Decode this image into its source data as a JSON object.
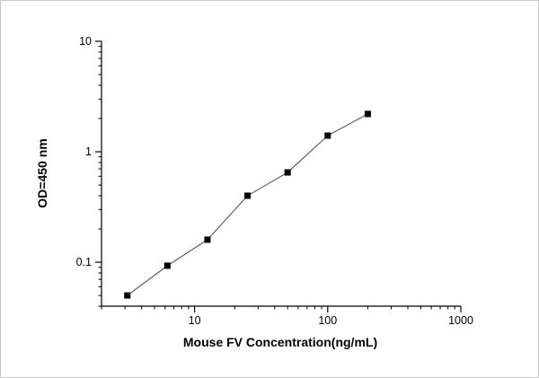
{
  "chart_data": {
    "type": "line",
    "title": "",
    "xlabel": "Mouse FV Concentration(ng/mL)",
    "ylabel": "OD=450 nm",
    "x": [
      3.125,
      6.25,
      12.5,
      25,
      50,
      100,
      200
    ],
    "y": [
      0.05,
      0.093,
      0.16,
      0.4,
      0.65,
      1.4,
      2.2
    ],
    "xscale": "log",
    "yscale": "log",
    "xlim": [
      2,
      1000
    ],
    "ylim": [
      0.04,
      10
    ],
    "x_major_ticks": [
      10,
      100,
      1000
    ],
    "y_major_ticks": [
      0.1,
      1,
      10
    ],
    "grid": false,
    "legend": false,
    "marker": "square",
    "marker_color": "#000000",
    "line_color": "#4a4a4a",
    "axis_color": "#000000"
  }
}
